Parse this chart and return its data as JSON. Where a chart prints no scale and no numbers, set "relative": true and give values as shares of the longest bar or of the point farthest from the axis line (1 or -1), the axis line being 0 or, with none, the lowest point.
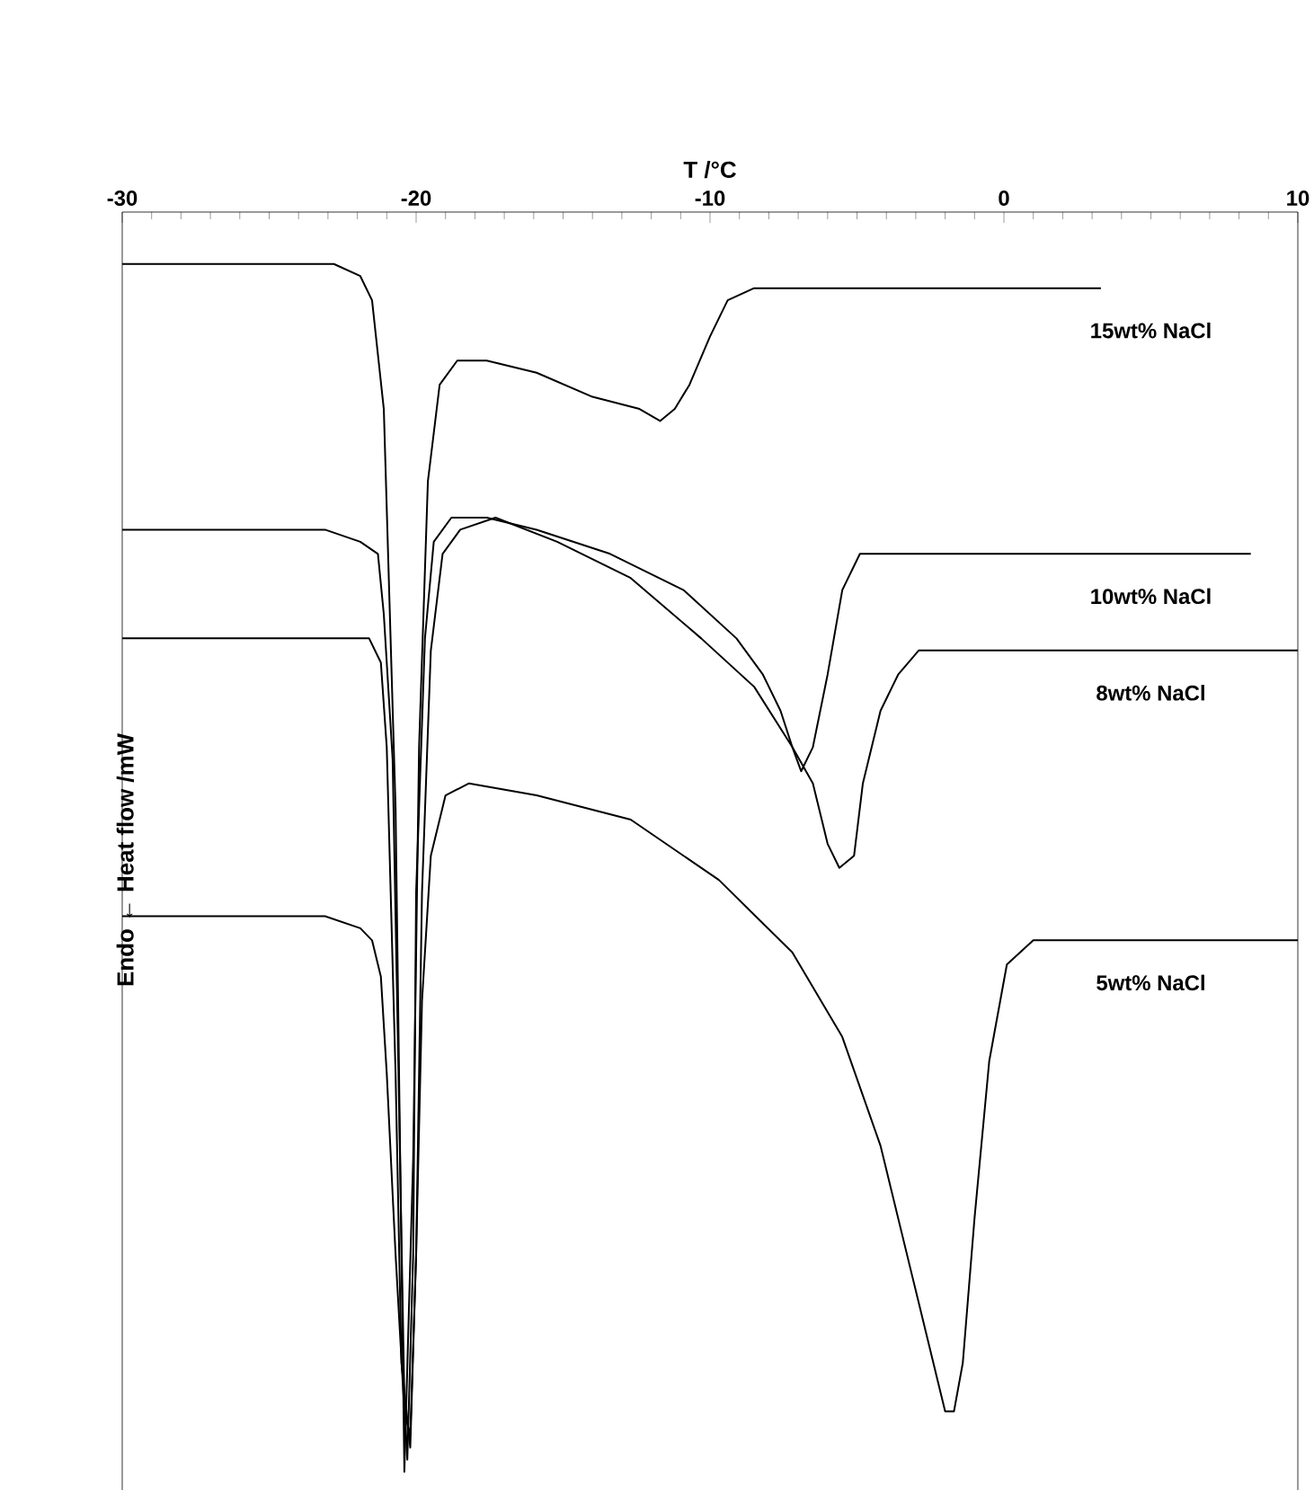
{
  "chart_data": {
    "type": "line",
    "relative": true,
    "xlabel": "T /°C",
    "ylabel": "Endo ← Heat flow /mW",
    "xlim": [
      -30,
      10
    ],
    "xticks": [
      -30,
      -20,
      -10,
      0,
      10
    ],
    "legend": false,
    "marker": "none",
    "line_style": "solid",
    "grid": false,
    "series": [
      {
        "name": "15wt% NaCl",
        "color": "#000000",
        "x": [
          -30,
          -25.0,
          -22.8,
          -21.9,
          -21.5,
          -21.1,
          -20.7,
          -20.5,
          -20.4,
          -20.1,
          -19.9,
          -19.6,
          -19.2,
          -18.6,
          -17.6,
          -15.9,
          -14.0,
          -12.4,
          -11.7,
          -11.2,
          -10.7,
          -10.0,
          -9.4,
          -8.5,
          3.3
        ],
        "values": [
          1.0,
          1.0,
          1.0,
          0.99,
          0.97,
          0.88,
          0.55,
          0.18,
          0,
          0.26,
          0.6,
          0.82,
          0.9,
          0.92,
          0.92,
          0.91,
          0.89,
          0.88,
          0.87,
          0.88,
          0.9,
          0.94,
          0.97,
          0.98,
          0.98
        ]
      },
      {
        "name": "10wt% NaCl",
        "color": "#000000",
        "x": [
          -30,
          -23.1,
          -21.9,
          -21.3,
          -21.1,
          -20.8,
          -20.6,
          -20.4,
          -20.3,
          -20.1,
          -20.0,
          -19.7,
          -19.4,
          -18.8,
          -17.6,
          -15.9,
          -13.4,
          -10.9,
          -9.1,
          -8.2,
          -7.6,
          -7.2,
          -6.9,
          -6.5,
          -6.0,
          -5.5,
          -4.9,
          -4.2,
          8.4
        ],
        "values": [
          0.78,
          0.78,
          0.77,
          0.76,
          0.71,
          0.59,
          0.33,
          0.06,
          0.01,
          0.18,
          0.48,
          0.69,
          0.77,
          0.79,
          0.79,
          0.78,
          0.76,
          0.73,
          0.69,
          0.66,
          0.63,
          0.6,
          0.58,
          0.6,
          0.66,
          0.73,
          0.76,
          0.76,
          0.76
        ]
      },
      {
        "name": "8wt% NaCl",
        "color": "#000000",
        "x": [
          -30,
          -22.5,
          -21.6,
          -21.2,
          -21.0,
          -20.7,
          -20.5,
          -20.2,
          -20.0,
          -19.8,
          -19.5,
          -19.1,
          -18.5,
          -17.3,
          -15.2,
          -12.7,
          -10.3,
          -8.5,
          -7.2,
          -6.5,
          -6.0,
          -5.6,
          -5.1,
          -4.8,
          -4.2,
          -3.6,
          -2.9,
          -1.7,
          10.0
        ],
        "values": [
          0.69,
          0.69,
          0.69,
          0.67,
          0.6,
          0.33,
          0.09,
          0.02,
          0.18,
          0.48,
          0.68,
          0.76,
          0.78,
          0.79,
          0.77,
          0.74,
          0.69,
          0.65,
          0.6,
          0.57,
          0.52,
          0.5,
          0.51,
          0.57,
          0.63,
          0.66,
          0.68,
          0.68,
          0.68
        ]
      },
      {
        "name": "5wt% NaCl",
        "color": "#000000",
        "x": [
          -30,
          -23.1,
          -21.9,
          -21.5,
          -21.2,
          -21.0,
          -20.7,
          -20.4,
          -20.2,
          -20.0,
          -19.8,
          -19.5,
          -19.0,
          -18.2,
          -15.9,
          -12.7,
          -9.7,
          -7.2,
          -5.5,
          -4.2,
          -3.0,
          -2.3,
          -2.0,
          -1.7,
          -1.4,
          -1.0,
          -0.5,
          0.1,
          1.0,
          2.6,
          10
        ],
        "values": [
          0.46,
          0.46,
          0.45,
          0.44,
          0.41,
          0.33,
          0.18,
          0.05,
          0.03,
          0.18,
          0.39,
          0.51,
          0.56,
          0.57,
          0.56,
          0.54,
          0.49,
          0.43,
          0.36,
          0.27,
          0.15,
          0.08,
          0.05,
          0.05,
          0.09,
          0.21,
          0.34,
          0.42,
          0.44,
          0.44,
          0.44
        ]
      }
    ]
  }
}
